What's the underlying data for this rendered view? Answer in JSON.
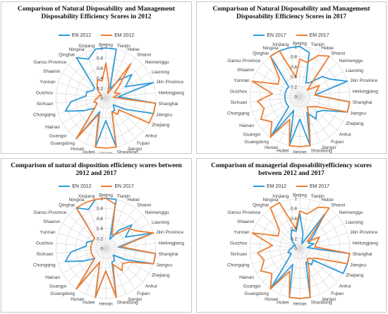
{
  "colors": {
    "en": "#2e9ad8",
    "em": "#ed7d31",
    "grid": "#d9d9d9",
    "text": "#404040"
  },
  "chart_data": [
    {
      "type": "radar",
      "title": "Comparison of Natural Disposability and Management Disposability Efficiency Scores in 2012",
      "categories": [
        "Beijing",
        "Tianjin",
        "Hebei",
        "Shanxi",
        "Neimenggu",
        "Liaoning",
        "Jilin Province",
        "Heilongjiang",
        "Shanghai",
        "Jiangsu",
        "Zhejiang",
        "Anhui",
        "Fujian",
        "Jiangxi",
        "Shandong",
        "Henan",
        "Hubei",
        "Hunan",
        "Guangdong",
        "Guangxi",
        "Hainan",
        "Chongqing",
        "Sichuan",
        "Guizhou",
        "Yunnan",
        "Shaanxi",
        "Gansu Province",
        "Qinghai",
        "Ningxia",
        "Xinjiang"
      ],
      "rticks": [
        "0",
        "0.2",
        "0.4",
        "0.6",
        "0.8",
        "1"
      ],
      "ylim": [
        0,
        1
      ],
      "legend_position": "top",
      "series": [
        {
          "name": "EN 2012",
          "values": [
            1,
            1,
            0.2,
            0.45,
            0.7,
            0.45,
            1,
            0.25,
            1,
            1,
            0.45,
            0.2,
            0.3,
            0.3,
            1,
            0.45,
            1,
            0.3,
            1,
            0.3,
            0.5,
            0.85,
            0.7,
            0.4,
            0.4,
            0.3,
            0.3,
            1,
            0.85,
            1
          ]
        },
        {
          "name": "EM 2012",
          "values": [
            0.7,
            0.3,
            0.1,
            0.85,
            0.35,
            0.2,
            0.3,
            0.15,
            1,
            1,
            1,
            0.35,
            0.4,
            0.3,
            1,
            1,
            1,
            0.35,
            1,
            0.3,
            0.2,
            0.25,
            0.2,
            0.15,
            0.15,
            0.1,
            0.2,
            0.3,
            0.4,
            0.35
          ]
        }
      ]
    },
    {
      "type": "radar",
      "title": "Comparison of Natural Disposability and Management Disposability Efficiency Scores in 2017",
      "categories": [
        "Beijing",
        "Tianjin",
        "Hebei",
        "Shanxi",
        "Neimenggu",
        "Liaoning",
        "Jilin Province",
        "Heilongjiang",
        "Shanghai",
        "Jiangsu",
        "Zhejiang",
        "Anhui",
        "Fujian",
        "Jiangxi",
        "Shandong",
        "Henan",
        "Hubei",
        "Hunan",
        "Guangdong",
        "Guangxi",
        "Hainan",
        "Chongqing",
        "Sichuan",
        "Guizhou",
        "Yunnan",
        "Shaanxi",
        "Gansu Province",
        "Qinghai",
        "Ningxia",
        "Xinjiang"
      ],
      "rticks": [
        "0",
        "0.2",
        "0.4",
        "0.6",
        "0.8",
        "1"
      ],
      "ylim": [
        0,
        1
      ],
      "legend_position": "top",
      "series": [
        {
          "name": "EN 2017",
          "values": [
            1,
            0.9,
            0.3,
            0.35,
            0.6,
            0.7,
            1,
            0.3,
            1,
            1,
            0.55,
            0.45,
            0.55,
            0.35,
            1,
            0.45,
            1,
            0.3,
            1,
            0.3,
            0.3,
            0.3,
            0.3,
            0.3,
            0.3,
            0.3,
            0.3,
            1,
            1,
            1
          ]
        },
        {
          "name": "EM 2017",
          "values": [
            0.75,
            0.7,
            0.9,
            1,
            0.2,
            0.45,
            0.35,
            0.3,
            1,
            1,
            0.4,
            0.3,
            0.25,
            0.45,
            1,
            1,
            1,
            0.5,
            1,
            0.75,
            0.9,
            0.75,
            0.85,
            0.55,
            1,
            0.5,
            0.55,
            1,
            1,
            0.4
          ]
        }
      ]
    },
    {
      "type": "radar",
      "title": "Comparison of natural disposition efficiency scores between 2012 and 2017",
      "categories": [
        "Beijing",
        "Tianjin",
        "Hebei",
        "Shanxi",
        "Neimenggu",
        "Liaoning",
        "Jilin Province",
        "Heilongjiang",
        "Shanghai",
        "Jiangsu",
        "Zhejiang",
        "Anhui",
        "Fujian",
        "Jiangxi",
        "Shandong",
        "Henan",
        "Hubei",
        "Hunan",
        "Guangdong",
        "Guangxi",
        "Hainan",
        "Chongqing",
        "Sichuan",
        "Guizhou",
        "Yunnan",
        "Shaanxi",
        "Gansu Province",
        "Qinghai",
        "Ningxia",
        "Xinjiang"
      ],
      "rticks": [
        "0",
        "0.2",
        "0.4",
        "0.6",
        "0.8",
        "1"
      ],
      "ylim": [
        0,
        1
      ],
      "legend_position": "top",
      "series": [
        {
          "name": "EN 2012",
          "values": [
            1,
            1,
            0.2,
            0.45,
            0.7,
            0.45,
            1,
            0.25,
            1,
            1,
            0.45,
            0.2,
            0.3,
            0.3,
            1,
            0.45,
            1,
            0.3,
            1,
            0.3,
            0.5,
            0.85,
            0.7,
            0.4,
            0.4,
            0.3,
            0.3,
            1,
            0.85,
            1
          ]
        },
        {
          "name": "EN 2017",
          "values": [
            1,
            0.9,
            0.3,
            0.35,
            0.6,
            0.7,
            1,
            0.3,
            1,
            1,
            0.55,
            0.45,
            0.55,
            0.35,
            1,
            0.45,
            1,
            0.3,
            1,
            0.3,
            0.3,
            0.3,
            0.3,
            0.3,
            0.3,
            0.3,
            0.3,
            1,
            1,
            1
          ]
        }
      ]
    },
    {
      "type": "radar",
      "title": "Comparison of managerial disposabilityefficiency scores between 2012 and 2017",
      "categories": [
        "Beijing",
        "Tianjin",
        "Hebei",
        "Shanxi",
        "Neimenggu",
        "Liaoning",
        "Jilin Province",
        "Heilongjiang",
        "Shanghai",
        "Jiangsu",
        "Zhejiang",
        "Anhui",
        "Fujian",
        "Jiangxi",
        "Shandong",
        "Henan",
        "Hubei",
        "Hunan",
        "Guangdong",
        "Guangxi",
        "Hainan",
        "Chongqing",
        "Sichuan",
        "Guizhou",
        "Yunnan",
        "Shaanxi",
        "Gansu Province",
        "Qinghai",
        "Ningxia",
        "Xinjiang"
      ],
      "rticks": [
        "0",
        "0.2",
        "0.4",
        "0.6",
        "0.8",
        "1"
      ],
      "ylim": [
        0,
        1
      ],
      "legend_position": "top",
      "series": [
        {
          "name": "EM 2012",
          "values": [
            0.7,
            0.3,
            0.1,
            0.85,
            0.35,
            0.2,
            0.3,
            0.15,
            1,
            1,
            1,
            0.35,
            0.4,
            0.3,
            1,
            1,
            1,
            0.35,
            1,
            0.3,
            0.2,
            0.25,
            0.2,
            0.15,
            0.15,
            0.1,
            0.2,
            0.3,
            0.4,
            0.35
          ]
        },
        {
          "name": "EM 2017",
          "values": [
            0.75,
            0.7,
            0.9,
            1,
            0.2,
            0.45,
            0.35,
            0.3,
            1,
            1,
            0.4,
            0.3,
            0.25,
            0.45,
            1,
            1,
            1,
            0.5,
            1,
            0.75,
            0.9,
            0.75,
            0.85,
            0.55,
            1,
            0.5,
            0.55,
            1,
            1,
            0.4
          ]
        }
      ]
    }
  ]
}
